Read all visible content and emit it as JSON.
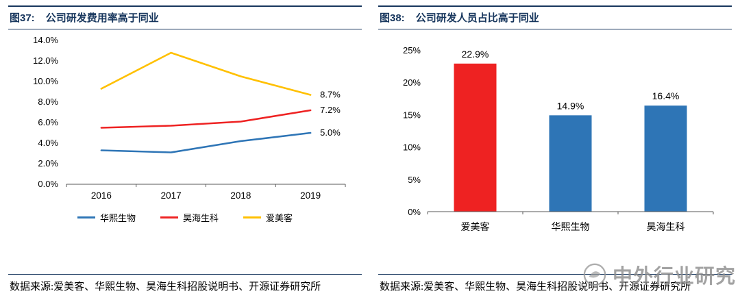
{
  "colors": {
    "navy": "#17365D",
    "blue": "#2E75B6",
    "red": "#EE2222",
    "yellow": "#FFC000",
    "axis": "#595959",
    "watermark_gray": "#8C8C8C"
  },
  "figure37": {
    "fig_label": "图37:",
    "title": "公司研发费用率高于同业",
    "source": "数据来源:爱美客、华熙生物、昊海生科招股说明书、开源证券研究所"
  },
  "figure38": {
    "fig_label": "图38:",
    "title": "公司研发人员占比高于同业",
    "source": "数据来源:爱美客、华熙生物、昊海生科招股说明书、开源证券研究所"
  },
  "watermark": {
    "text": "中外行业研究"
  },
  "chart_data": [
    {
      "type": "line",
      "title": "公司研发费用率高于同业",
      "x": [
        "2016",
        "2017",
        "2018",
        "2019"
      ],
      "series": [
        {
          "name": "华熙生物",
          "color": "#2E75B6",
          "values": [
            3.3,
            3.1,
            4.2,
            5.0
          ],
          "end_label": "5.0%"
        },
        {
          "name": "昊海生科",
          "color": "#EE2222",
          "values": [
            5.5,
            5.7,
            6.1,
            7.2
          ],
          "end_label": "7.2%"
        },
        {
          "name": "爱美客",
          "color": "#FFC000",
          "values": [
            9.3,
            12.8,
            10.5,
            8.7
          ],
          "end_label": "8.7%"
        }
      ],
      "ylim": [
        0,
        14
      ],
      "yticks": [
        "0.0%",
        "2.0%",
        "4.0%",
        "6.0%",
        "8.0%",
        "10.0%",
        "12.0%",
        "14.0%"
      ],
      "xlabel": "",
      "ylabel": "",
      "grid": false,
      "legend_position": "bottom"
    },
    {
      "type": "bar",
      "title": "公司研发人员占比高于同业",
      "categories": [
        "爱美客",
        "华熙生物",
        "昊海生科"
      ],
      "values": [
        22.9,
        14.9,
        16.4
      ],
      "bar_labels": [
        "22.9%",
        "14.9%",
        "16.4%"
      ],
      "bar_colors": [
        "#EE2222",
        "#2E75B6",
        "#2E75B6"
      ],
      "ylim": [
        0,
        25
      ],
      "yticks": [
        "0%",
        "5%",
        "10%",
        "15%",
        "20%",
        "25%"
      ],
      "xlabel": "",
      "ylabel": "",
      "grid": false,
      "legend_position": "none"
    }
  ]
}
